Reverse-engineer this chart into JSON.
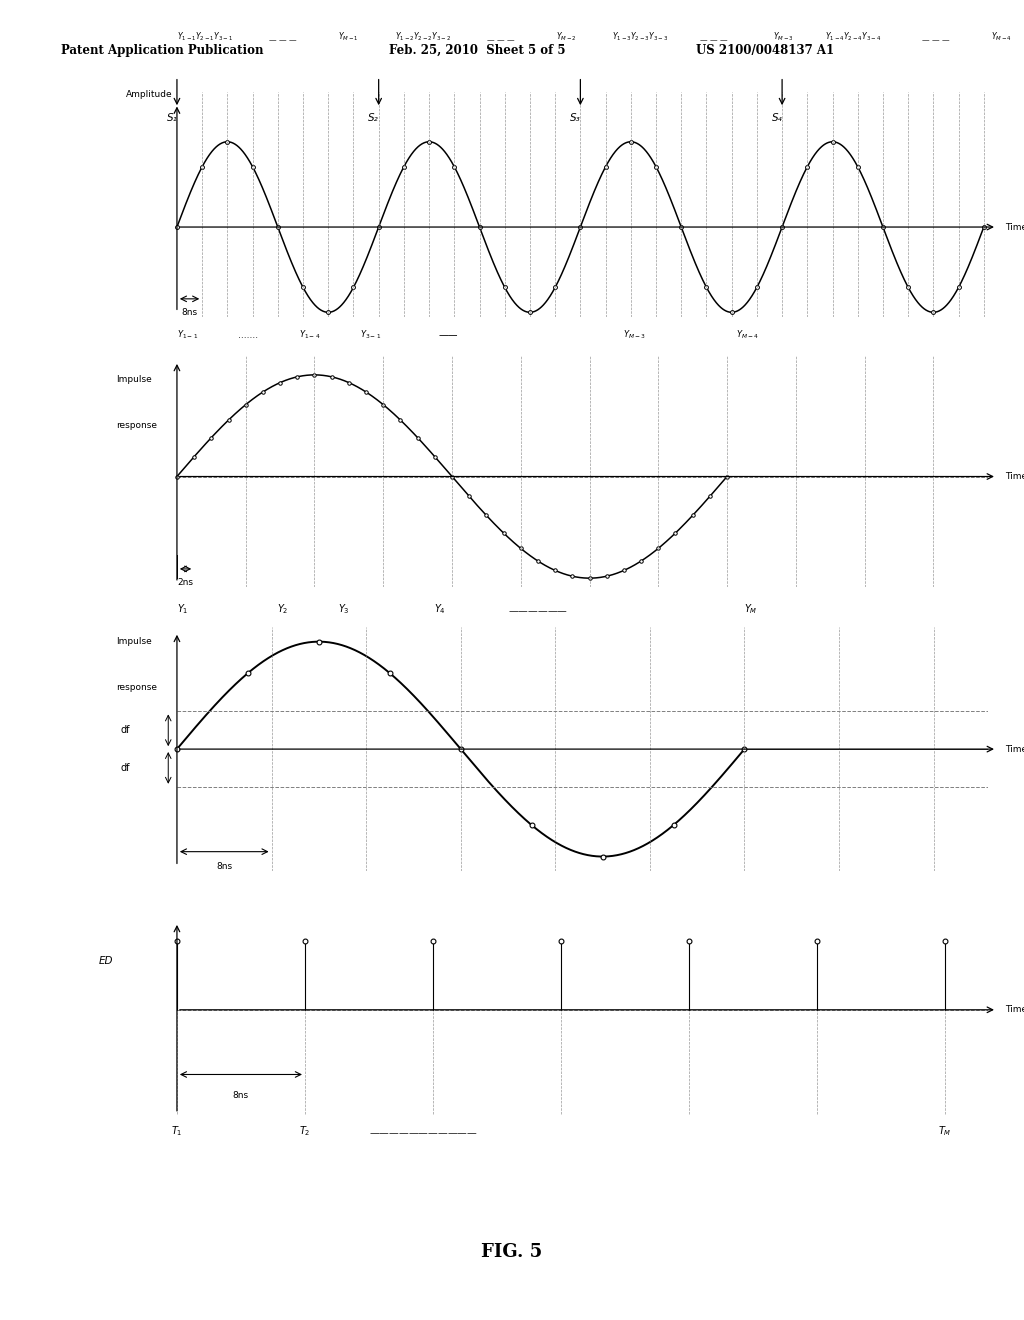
{
  "bg_color": "#ffffff",
  "header_left": "Patent Application Publication",
  "header_center": "Feb. 25, 2010  Sheet 5 of 5",
  "header_right": "US 2100/0048137 A1",
  "fig_label": "FIG. 5"
}
